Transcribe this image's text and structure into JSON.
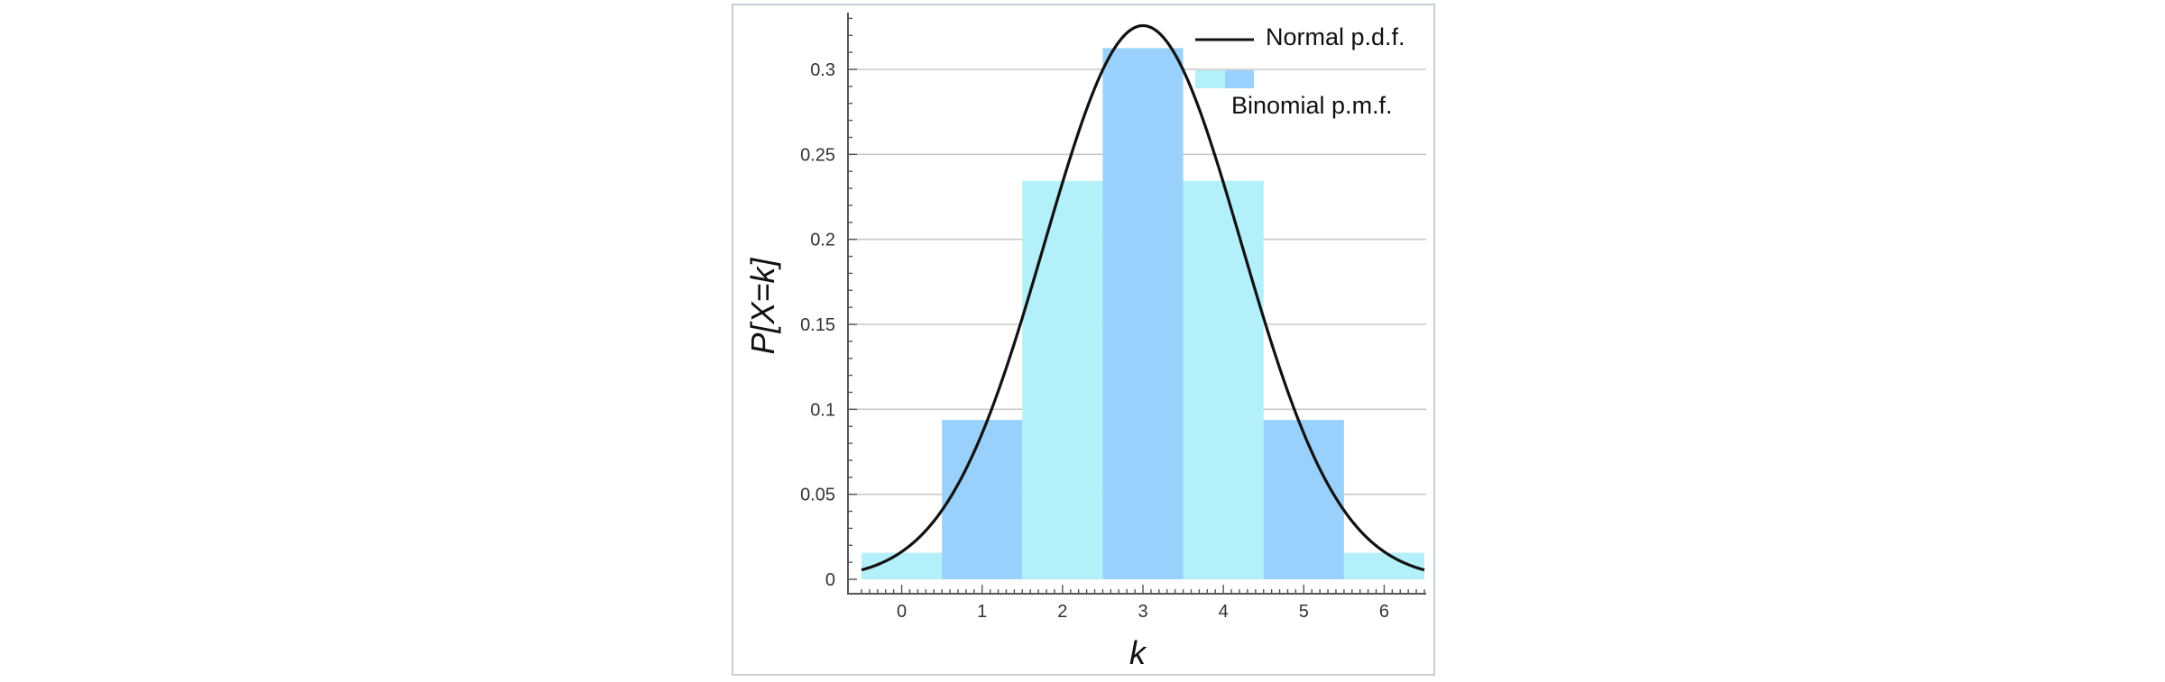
{
  "chart_data": {
    "type": "bar",
    "categories": [
      "0",
      "1",
      "2",
      "3",
      "4",
      "5",
      "6"
    ],
    "x": [
      0,
      1,
      2,
      3,
      4,
      5,
      6
    ],
    "values": [
      0.015625,
      0.09375,
      0.234375,
      0.3125,
      0.234375,
      0.09375,
      0.015625
    ],
    "bar_colors": [
      "#b3f0fa",
      "#99d1fc",
      "#b3f0fa",
      "#99d1fc",
      "#b3f0fa",
      "#99d1fc",
      "#b3f0fa"
    ],
    "series": [
      {
        "name": "Binomial p.m.f.",
        "type": "bar"
      },
      {
        "name": "Normal p.d.f.",
        "type": "line",
        "mean": 3,
        "sd": 1.224745,
        "color": "#111111"
      }
    ],
    "title": "",
    "xlabel": "k",
    "ylabel": "P[X=k]",
    "xlim": [
      -0.5,
      6.5
    ],
    "ylim": [
      0,
      0.33
    ],
    "yticks": [
      0,
      0.05,
      0.1,
      0.15,
      0.2,
      0.25,
      0.3
    ],
    "ytick_labels": [
      "0",
      "0.05",
      "0.1",
      "0.15",
      "0.2",
      "0.25",
      "0.3"
    ],
    "xticks": [
      0,
      1,
      2,
      3,
      4,
      5,
      6
    ],
    "xtick_labels": [
      "0",
      "1",
      "2",
      "3",
      "4",
      "5",
      "6"
    ],
    "grid": "horizontal",
    "legend_position": "top-right",
    "colors": {
      "light_bar": "#b3f0fa",
      "dark_bar": "#99d1fc",
      "curve": "#111111",
      "grid": "#c8c8c8",
      "axis": "#555555"
    }
  }
}
